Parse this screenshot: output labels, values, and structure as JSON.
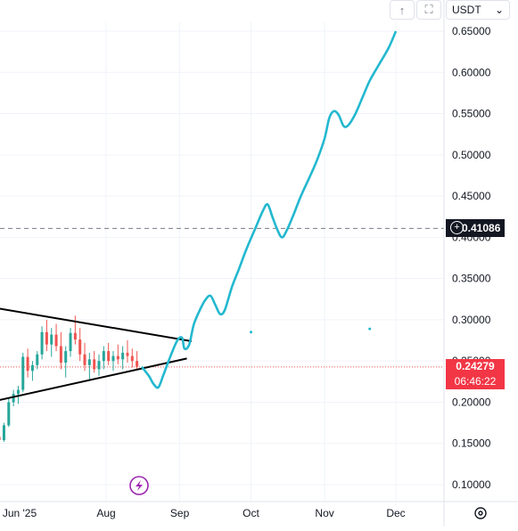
{
  "toolbar": {
    "currency": "USDT",
    "currency_icon": "chevron-down-icon",
    "arrow_icon": "arrow-up-icon",
    "chart_type_icon": "bracket-icon",
    "settings_icon": "settings-gear-icon",
    "lightning_icon": "lightning-icon"
  },
  "colors": {
    "projection": "#22b8cf",
    "candle_up": "#26a69a",
    "candle_down": "#ef5350",
    "trendline": "#000000",
    "price_line": "#ef5350",
    "price_badge": "#f23645",
    "marker_badge": "#131722",
    "lightning": "#9c27b0"
  },
  "chart_data": {
    "type": "line",
    "y_axis": {
      "ticks": [
        "0.65000",
        "0.60000",
        "0.55000",
        "0.50000",
        "0.45000",
        "0.40000",
        "0.35000",
        "0.30000",
        "0.25000",
        "0.20000",
        "0.15000",
        "0.10000"
      ],
      "ylim": [
        0.08,
        0.67
      ],
      "position": "right"
    },
    "x_axis": {
      "labels": [
        "Jun '25",
        "Aug",
        "Sep",
        "Oct",
        "Nov",
        "Dec"
      ],
      "label_dates": [
        "2025-06-01",
        "2025-08-01",
        "2025-09-01",
        "2025-10-01",
        "2025-11-01",
        "2025-12-01"
      ]
    },
    "candles": [
      [
        "2025-05-20",
        0.14,
        0.15,
        0.135,
        0.145
      ],
      [
        "2025-05-22",
        0.145,
        0.148,
        0.138,
        0.142
      ],
      [
        "2025-05-24",
        0.142,
        0.15,
        0.136,
        0.139
      ],
      [
        "2025-05-26",
        0.139,
        0.145,
        0.125,
        0.128
      ],
      [
        "2025-05-28",
        0.128,
        0.152,
        0.126,
        0.15
      ],
      [
        "2025-05-30",
        0.15,
        0.155,
        0.141,
        0.144
      ],
      [
        "2025-06-01",
        0.144,
        0.152,
        0.139,
        0.148
      ],
      [
        "2025-06-03",
        0.148,
        0.156,
        0.143,
        0.146
      ],
      [
        "2025-06-05",
        0.146,
        0.151,
        0.138,
        0.141
      ],
      [
        "2025-06-07",
        0.141,
        0.15,
        0.137,
        0.147
      ],
      [
        "2025-06-09",
        0.147,
        0.158,
        0.144,
        0.155
      ],
      [
        "2025-06-11",
        0.155,
        0.16,
        0.148,
        0.151
      ],
      [
        "2025-06-13",
        0.151,
        0.158,
        0.146,
        0.156
      ],
      [
        "2025-06-15",
        0.156,
        0.162,
        0.152,
        0.158
      ],
      [
        "2025-06-17",
        0.158,
        0.163,
        0.15,
        0.154
      ],
      [
        "2025-06-19",
        0.154,
        0.175,
        0.152,
        0.172
      ],
      [
        "2025-06-21",
        0.172,
        0.205,
        0.17,
        0.2
      ],
      [
        "2025-06-23",
        0.2,
        0.215,
        0.195,
        0.21
      ],
      [
        "2025-06-25",
        0.21,
        0.22,
        0.198,
        0.215
      ],
      [
        "2025-06-27",
        0.215,
        0.26,
        0.212,
        0.255
      ],
      [
        "2025-06-29",
        0.255,
        0.265,
        0.23,
        0.238
      ],
      [
        "2025-07-01",
        0.238,
        0.25,
        0.226,
        0.245
      ],
      [
        "2025-07-03",
        0.245,
        0.262,
        0.24,
        0.258
      ],
      [
        "2025-07-05",
        0.258,
        0.292,
        0.252,
        0.285
      ],
      [
        "2025-07-07",
        0.285,
        0.3,
        0.262,
        0.27
      ],
      [
        "2025-07-09",
        0.27,
        0.29,
        0.255,
        0.282
      ],
      [
        "2025-07-11",
        0.282,
        0.295,
        0.262,
        0.268
      ],
      [
        "2025-07-13",
        0.268,
        0.285,
        0.24,
        0.248
      ],
      [
        "2025-07-15",
        0.248,
        0.268,
        0.23,
        0.262
      ],
      [
        "2025-07-17",
        0.262,
        0.29,
        0.255,
        0.284
      ],
      [
        "2025-07-19",
        0.284,
        0.305,
        0.27,
        0.276
      ],
      [
        "2025-07-21",
        0.276,
        0.29,
        0.25,
        0.258
      ],
      [
        "2025-07-23",
        0.258,
        0.272,
        0.238,
        0.245
      ],
      [
        "2025-07-25",
        0.245,
        0.26,
        0.228,
        0.252
      ],
      [
        "2025-07-27",
        0.252,
        0.262,
        0.236,
        0.24
      ],
      [
        "2025-07-29",
        0.24,
        0.258,
        0.232,
        0.25
      ],
      [
        "2025-07-31",
        0.25,
        0.268,
        0.24,
        0.262
      ],
      [
        "2025-08-02",
        0.262,
        0.272,
        0.245,
        0.25
      ],
      [
        "2025-08-04",
        0.25,
        0.262,
        0.238,
        0.256
      ],
      [
        "2025-08-06",
        0.256,
        0.27,
        0.246,
        0.252
      ],
      [
        "2025-08-08",
        0.252,
        0.268,
        0.24,
        0.26
      ],
      [
        "2025-08-10",
        0.26,
        0.275,
        0.248,
        0.256
      ],
      [
        "2025-08-12",
        0.256,
        0.265,
        0.242,
        0.25
      ],
      [
        "2025-08-14",
        0.25,
        0.262,
        0.24,
        0.243
      ]
    ],
    "series": [
      {
        "type": "line",
        "color": "#22b8cf",
        "points": [
          [
            "2025-08-16",
            0.243
          ],
          [
            "2025-08-19",
            0.232
          ],
          [
            "2025-08-21",
            0.222
          ],
          [
            "2025-08-23",
            0.218
          ],
          [
            "2025-08-25",
            0.232
          ],
          [
            "2025-08-28",
            0.255
          ],
          [
            "2025-08-31",
            0.275
          ],
          [
            "2025-09-02",
            0.278
          ],
          [
            "2025-09-03",
            0.265
          ],
          [
            "2025-09-05",
            0.27
          ],
          [
            "2025-09-07",
            0.295
          ],
          [
            "2025-09-10",
            0.315
          ],
          [
            "2025-09-12",
            0.325
          ],
          [
            "2025-09-14",
            0.329
          ],
          [
            "2025-09-16",
            0.318
          ],
          [
            "2025-09-18",
            0.307
          ],
          [
            "2025-09-20",
            0.312
          ],
          [
            "2025-09-23",
            0.34
          ],
          [
            "2025-09-26",
            0.362
          ],
          [
            "2025-09-29",
            0.385
          ],
          [
            "2025-10-03",
            0.412
          ],
          [
            "2025-10-06",
            0.432
          ],
          [
            "2025-10-08",
            0.44
          ],
          [
            "2025-10-10",
            0.425
          ],
          [
            "2025-10-12",
            0.41
          ],
          [
            "2025-10-14",
            0.4
          ],
          [
            "2025-10-16",
            0.408
          ],
          [
            "2025-10-19",
            0.428
          ],
          [
            "2025-10-22",
            0.45
          ],
          [
            "2025-10-26",
            0.475
          ],
          [
            "2025-10-29",
            0.495
          ],
          [
            "2025-11-01",
            0.52
          ],
          [
            "2025-11-03",
            0.545
          ],
          [
            "2025-11-05",
            0.553
          ],
          [
            "2025-11-07",
            0.548
          ],
          [
            "2025-11-09",
            0.535
          ],
          [
            "2025-11-11",
            0.536
          ],
          [
            "2025-11-14",
            0.55
          ],
          [
            "2025-11-17",
            0.57
          ],
          [
            "2025-11-20",
            0.59
          ],
          [
            "2025-11-24",
            0.61
          ],
          [
            "2025-11-28",
            0.63
          ],
          [
            "2025-12-01",
            0.65
          ]
        ]
      }
    ],
    "trendlines": [
      {
        "from": [
          "2025-06-08",
          0.318
        ],
        "to": [
          "2025-09-06",
          0.274
        ]
      },
      {
        "from": [
          "2025-06-13",
          0.2
        ],
        "to": [
          "2025-09-04",
          0.253
        ]
      }
    ],
    "markers": [
      {
        "date": "2025-10-01",
        "value": 0.285
      },
      {
        "date": "2025-11-20",
        "value": 0.289
      }
    ],
    "horizontal_lines": [
      {
        "value": 0.41086,
        "label": "0.41086",
        "style": "dashed",
        "color": "#787b86"
      },
      {
        "value": 0.24279,
        "label": "0.24279",
        "sublabel": "06:46:22",
        "style": "dotted",
        "color": "#ef5350"
      }
    ]
  }
}
